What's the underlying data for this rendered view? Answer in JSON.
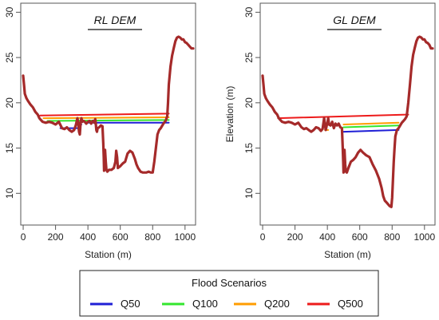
{
  "chart_data": [
    {
      "type": "line",
      "title": "RL DEM",
      "xlabel": "Station (m)",
      "ylabel": "",
      "xlim": [
        -15,
        1065
      ],
      "ylim": [
        6.5,
        31
      ],
      "xticks": [
        0,
        200,
        400,
        600,
        800,
        1000
      ],
      "yticks": [
        10,
        15,
        20,
        25,
        30
      ],
      "series": [
        {
          "kind": "terrain",
          "color": "#a52a2a",
          "x": [
            0,
            5,
            10,
            20,
            30,
            45,
            60,
            75,
            90,
            100,
            110,
            120,
            140,
            160,
            180,
            200,
            220,
            240,
            255,
            270,
            285,
            300,
            315,
            325,
            335,
            340,
            345,
            350,
            355,
            360,
            365,
            372,
            380,
            390,
            400,
            410,
            420,
            430,
            440,
            445,
            448,
            452,
            456,
            460,
            470,
            480,
            490,
            495,
            498,
            500,
            503,
            506,
            510,
            514,
            520,
            530,
            545,
            560,
            570,
            575,
            580,
            585,
            600,
            615,
            630,
            645,
            660,
            675,
            690,
            700,
            710,
            725,
            740,
            745,
            750,
            760,
            775,
            790,
            800,
            810,
            820,
            830,
            840,
            850,
            860,
            870,
            880,
            890,
            895,
            900,
            910,
            920,
            930,
            940,
            950,
            960,
            970,
            980,
            990,
            1000,
            1010,
            1020,
            1030,
            1040,
            1050
          ],
          "y": [
            23.0,
            22.0,
            21.0,
            20.5,
            20.2,
            19.8,
            19.5,
            19.0,
            18.7,
            18.3,
            18.1,
            17.9,
            17.8,
            17.9,
            17.8,
            17.6,
            17.9,
            17.2,
            17.1,
            17.3,
            17.0,
            16.8,
            17.0,
            17.5,
            18.3,
            17.8,
            16.8,
            16.5,
            17.8,
            18.3,
            17.9,
            18.0,
            17.9,
            17.7,
            17.9,
            18.0,
            17.7,
            18.0,
            17.8,
            18.2,
            17.8,
            17.0,
            16.8,
            17.2,
            17.3,
            17.5,
            17.4,
            15.5,
            14.0,
            12.5,
            13.5,
            14.8,
            13.5,
            12.6,
            12.4,
            12.6,
            12.6,
            12.8,
            13.5,
            14.7,
            14.0,
            12.8,
            13.0,
            13.3,
            13.5,
            14.4,
            14.7,
            14.5,
            13.8,
            13.2,
            12.8,
            12.4,
            12.3,
            12.3,
            12.3,
            12.3,
            12.4,
            12.3,
            12.3,
            13.5,
            15.0,
            16.5,
            17.0,
            17.2,
            17.5,
            17.8,
            18.0,
            18.5,
            20.0,
            22.0,
            24.0,
            25.2,
            26.0,
            26.8,
            27.2,
            27.3,
            27.2,
            27.0,
            27.0,
            26.7,
            26.6,
            26.4,
            26.2,
            26.0,
            26.0
          ]
        },
        {
          "name": "Q50",
          "color": "#1f1fd6",
          "x": [
            230,
            335
          ],
          "y": [
            17.2,
            17.2
          ]
        },
        {
          "name": "Q50",
          "color": "#1f1fd6",
          "x": [
            350,
            360
          ],
          "y": [
            17.6,
            17.6
          ]
        },
        {
          "name": "Q50",
          "color": "#1f1fd6",
          "x": [
            400,
            900
          ],
          "y": [
            17.8,
            17.8
          ]
        },
        {
          "name": "Q100",
          "color": "#33e62e",
          "x": [
            150,
            900
          ],
          "y": [
            18.0,
            18.1
          ]
        },
        {
          "name": "Q200",
          "color": "#ff9d00",
          "x": [
            125,
            900
          ],
          "y": [
            18.3,
            18.4
          ]
        },
        {
          "name": "Q500",
          "color": "#ed1b1b",
          "x": [
            105,
            900
          ],
          "y": [
            18.6,
            18.8
          ]
        }
      ]
    },
    {
      "type": "line",
      "title": "GL DEM",
      "xlabel": "Station (m)",
      "ylabel": "Elevation (m)",
      "xlim": [
        -15,
        1065
      ],
      "ylim": [
        6.5,
        31
      ],
      "xticks": [
        0,
        200,
        400,
        600,
        800,
        1000
      ],
      "yticks": [
        10,
        15,
        20,
        25,
        30
      ],
      "series": [
        {
          "kind": "terrain",
          "color": "#a52a2a",
          "x": [
            0,
            5,
            10,
            20,
            30,
            45,
            60,
            75,
            90,
            100,
            110,
            120,
            140,
            160,
            180,
            200,
            220,
            240,
            255,
            270,
            285,
            300,
            315,
            330,
            345,
            360,
            370,
            380,
            385,
            390,
            395,
            400,
            405,
            410,
            420,
            430,
            440,
            450,
            460,
            470,
            480,
            490,
            495,
            498,
            500,
            503,
            506,
            510,
            514,
            520,
            530,
            545,
            560,
            575,
            590,
            605,
            620,
            640,
            660,
            680,
            700,
            720,
            735,
            745,
            755,
            765,
            775,
            785,
            795,
            800,
            805,
            810,
            815,
            820,
            830,
            840,
            850,
            860,
            870,
            880,
            890,
            900,
            910,
            920,
            930,
            940,
            950,
            960,
            970,
            980,
            990,
            1000,
            1010,
            1020,
            1030,
            1040,
            1050
          ],
          "y": [
            23.0,
            22.0,
            21.0,
            20.5,
            20.2,
            19.8,
            19.5,
            19.0,
            18.7,
            18.3,
            18.1,
            17.9,
            17.8,
            17.9,
            17.8,
            17.6,
            17.8,
            17.3,
            17.1,
            17.2,
            17.0,
            16.8,
            17.0,
            17.3,
            17.2,
            16.9,
            17.1,
            18.3,
            17.6,
            17.0,
            17.4,
            17.8,
            18.3,
            17.6,
            17.5,
            17.9,
            17.2,
            17.7,
            17.5,
            17.7,
            17.3,
            17.2,
            15.0,
            13.5,
            12.3,
            13.5,
            14.8,
            13.2,
            12.4,
            12.3,
            12.8,
            13.5,
            13.7,
            14.0,
            14.5,
            14.8,
            14.5,
            14.2,
            14.0,
            13.2,
            12.5,
            11.6,
            10.6,
            9.7,
            9.2,
            9.0,
            8.8,
            8.6,
            8.5,
            9.5,
            11.5,
            13.5,
            15.0,
            16.3,
            17.0,
            17.2,
            17.5,
            17.8,
            18.0,
            18.2,
            18.5,
            20.0,
            22.0,
            24.0,
            25.3,
            26.1,
            26.8,
            27.2,
            27.3,
            27.2,
            27.0,
            27.0,
            26.7,
            26.6,
            26.4,
            26.0,
            26.0
          ]
        },
        {
          "name": "Q50",
          "color": "#1f1fd6",
          "x": [
            500,
            840
          ],
          "y": [
            16.8,
            17.0
          ]
        },
        {
          "name": "Q100",
          "color": "#33e62e",
          "x": [
            500,
            840
          ],
          "y": [
            17.3,
            17.5
          ]
        },
        {
          "name": "Q200",
          "color": "#ff9d00",
          "x": [
            385,
            405
          ],
          "y": [
            17.0,
            17.0
          ]
        },
        {
          "name": "Q200",
          "color": "#ff9d00",
          "x": [
            500,
            840
          ],
          "y": [
            17.6,
            17.8
          ]
        },
        {
          "name": "Q500",
          "color": "#ed1b1b",
          "x": [
            95,
            900
          ],
          "y": [
            18.3,
            18.7
          ]
        }
      ]
    }
  ],
  "legend": {
    "title": "Flood Scenarios",
    "entries": [
      {
        "label": "Q50",
        "color": "#1f1fd6"
      },
      {
        "label": "Q100",
        "color": "#33e62e"
      },
      {
        "label": "Q200",
        "color": "#ff9d00"
      },
      {
        "label": "Q500",
        "color": "#ed1b1b"
      }
    ]
  }
}
